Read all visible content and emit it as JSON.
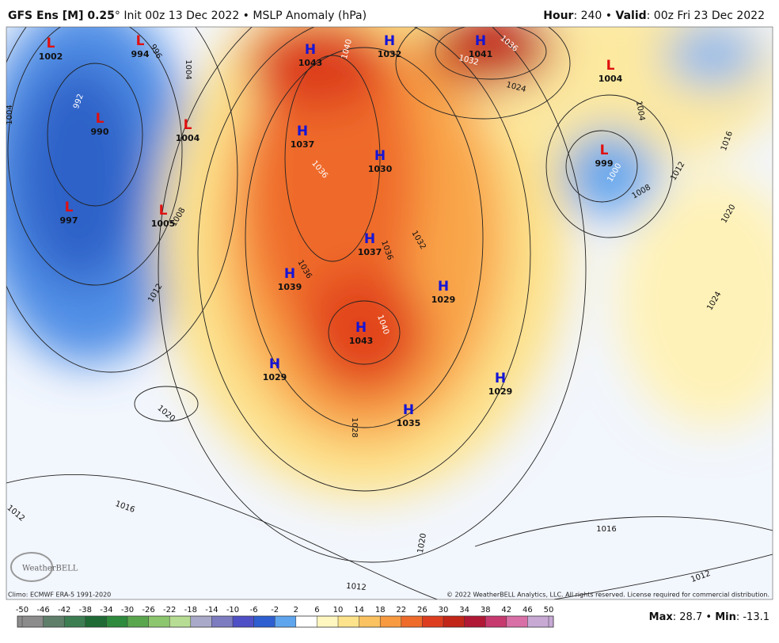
{
  "header": {
    "model": "GFS Ens [M] 0.25",
    "info": "° Init 00z 13 Dec 2022 • MSLP Anomaly (hPa)",
    "hour_label": "Hour",
    "hour": ": 240 • ",
    "valid_label": "Valid",
    "valid": ": 00z Fri 23 Dec 2022"
  },
  "centers": [
    {
      "type": "L",
      "value": 1002
    },
    {
      "type": "L",
      "value": 994
    },
    {
      "type": "H",
      "value": 1043
    },
    {
      "type": "H",
      "value": 1032
    },
    {
      "type": "H",
      "value": 1041
    },
    {
      "type": "L",
      "value": 1004
    },
    {
      "type": "L",
      "value": 990
    },
    {
      "type": "L",
      "value": 1004
    },
    {
      "type": "H",
      "value": 1037
    },
    {
      "type": "H",
      "value": 1030
    },
    {
      "type": "L",
      "value": 999
    },
    {
      "type": "L",
      "value": 997
    },
    {
      "type": "L",
      "value": 1005
    },
    {
      "type": "H",
      "value": 1037
    },
    {
      "type": "H",
      "value": 1039
    },
    {
      "type": "H",
      "value": 1029
    },
    {
      "type": "H",
      "value": 1043
    },
    {
      "type": "H",
      "value": 1029
    },
    {
      "type": "H",
      "value": 1029
    },
    {
      "type": "H",
      "value": 1035
    }
  ],
  "contour_labels": [
    996,
    1004,
    1004,
    992,
    1040,
    1036,
    1032,
    1024,
    1004,
    1016,
    1000,
    1012,
    1008,
    1020,
    1036,
    1008,
    1036,
    1032,
    1036,
    1012,
    1040,
    1024,
    1020,
    1028,
    1016,
    1012,
    1020,
    1016,
    1012,
    1012
  ],
  "footer": {
    "climo": "Climo: ECMWF ERA-5 1991-2020",
    "copyright": "© 2022 WeatherBELL Analytics, LLC. All rights reserved. License required for commercial distribution.",
    "logo": "WeatherBELL"
  },
  "colorbar": {
    "ticks": [
      -50,
      -46,
      -42,
      -38,
      -34,
      -30,
      -26,
      -22,
      -18,
      -14,
      -10,
      -6,
      -2,
      2,
      6,
      10,
      14,
      18,
      22,
      26,
      30,
      34,
      38,
      42,
      46,
      50
    ],
    "colors": [
      "#8c8c8c",
      "#5f7f6a",
      "#3d7d52",
      "#1f6a35",
      "#2e8a3c",
      "#5aa64d",
      "#8cc66e",
      "#b7dd94",
      "#a9a9c9",
      "#7d7cc0",
      "#4f4fc6",
      "#2d5fd0",
      "#5fa5ee",
      "#ffffff",
      "#fff6c0",
      "#fde38c",
      "#fbc261",
      "#f89a40",
      "#ef6b2a",
      "#dd3d1e",
      "#c22618",
      "#b01835",
      "#c63a70",
      "#d86fa6",
      "#c7a9d4"
    ]
  },
  "stats": {
    "max_label": "Max",
    "max": 28.7,
    "separator": "•",
    "min_label": "Min",
    "min": -13.1
  }
}
